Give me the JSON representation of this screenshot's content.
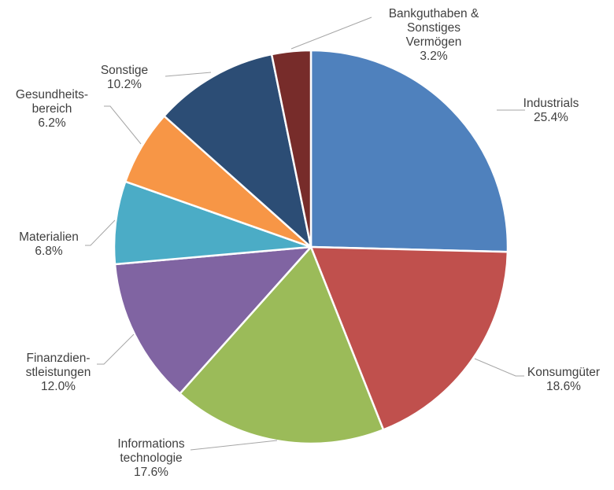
{
  "chart_data": {
    "type": "pie",
    "title": "",
    "slices": [
      {
        "name": "Industrials",
        "label_lines": [
          "Industrials"
        ],
        "value": 25.4,
        "display": "25.4%",
        "color": "#4f81bd"
      },
      {
        "name": "Konsumgüter",
        "label_lines": [
          "Konsumgüter"
        ],
        "value": 18.6,
        "display": "18.6%",
        "color": "#c0504d"
      },
      {
        "name": "Informations technologie",
        "label_lines": [
          "Informations",
          "technologie"
        ],
        "value": 17.6,
        "display": "17.6%",
        "color": "#9bbb59"
      },
      {
        "name": "Finanzdienstleistungen",
        "label_lines": [
          "Finanzdien-",
          "stleistungen"
        ],
        "value": 12.0,
        "display": "12.0%",
        "color": "#8064a2"
      },
      {
        "name": "Materialien",
        "label_lines": [
          "Materialien"
        ],
        "value": 6.8,
        "display": "6.8%",
        "color": "#4bacc6"
      },
      {
        "name": "Gesundheitsbereich",
        "label_lines": [
          "Gesundheits-",
          "bereich"
        ],
        "value": 6.2,
        "display": "6.2%",
        "color": "#f79646"
      },
      {
        "name": "Sonstige",
        "label_lines": [
          "Sonstige"
        ],
        "value": 10.2,
        "display": "10.2%",
        "color": "#2c4d75"
      },
      {
        "name": "Bankguthaben & Sonstiges Vermögen",
        "label_lines": [
          "Bankguthaben  &",
          "Sonstiges",
          "Vermögen"
        ],
        "value": 3.2,
        "display": "3.2%",
        "color": "#772c2a"
      }
    ],
    "start_angle": "12 o'clock",
    "direction": "clockwise",
    "legend": "none",
    "data_labels": "outside with leader lines"
  }
}
